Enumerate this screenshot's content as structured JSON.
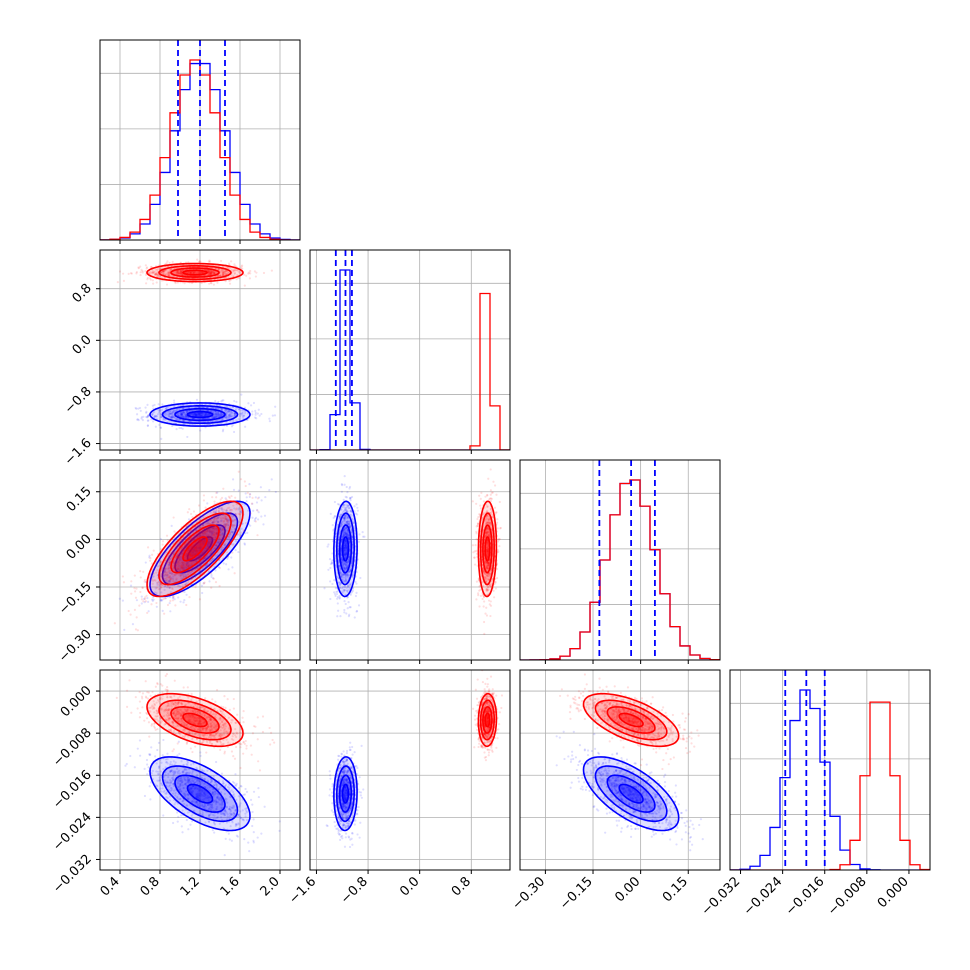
{
  "chart_data": {
    "type": "scatter",
    "grid": true,
    "colors": {
      "series_a": "#0000ff",
      "series_b": "#ff0000"
    },
    "params": [
      {
        "range": [
          0.2,
          2.2
        ],
        "ticks": [
          "0.4",
          "0.8",
          "1.2",
          "1.6",
          "2.0"
        ],
        "tick_values": [
          0.4,
          0.8,
          1.2,
          1.6,
          2.0
        ]
      },
      {
        "range": [
          -1.7,
          1.4
        ],
        "ticks": [
          "−1.6",
          "−0.8",
          "0.0",
          "0.8"
        ],
        "tick_values": [
          -1.6,
          -0.8,
          0.0,
          0.8
        ]
      },
      {
        "range": [
          -0.38,
          0.25
        ],
        "ticks": [
          "−0.30",
          "−0.15",
          "0.00",
          "0.15"
        ],
        "tick_values": [
          -0.3,
          -0.15,
          0.0,
          0.15
        ]
      },
      {
        "range": [
          -0.034,
          0.004
        ],
        "ticks": [
          "−0.032",
          "−0.024",
          "−0.016",
          "−0.008",
          "0.000"
        ],
        "tick_values": [
          -0.032,
          -0.024,
          -0.016,
          -0.008,
          0.0
        ]
      }
    ],
    "series": [
      {
        "color": "blue",
        "means": [
          1.2,
          -1.15,
          -0.03,
          -0.0195
        ],
        "stds": [
          0.25,
          0.09,
          0.075,
          0.0035
        ],
        "quantiles": [
          [
            0.98,
            1.2,
            1.45
          ],
          [
            -1.3,
            -1.15,
            -1.05
          ],
          [
            -0.13,
            -0.03,
            0.045
          ],
          [
            -0.0235,
            -0.0195,
            -0.016
          ]
        ]
      },
      {
        "color": "red",
        "means": [
          1.15,
          1.05,
          -0.03,
          -0.0055
        ],
        "stds": [
          0.24,
          0.07,
          0.075,
          0.0025
        ]
      }
    ],
    "correlations": {
      "blue": {
        "0-2": 0.75,
        "0-3": -0.6,
        "1-2": 0.05,
        "1-3": 0.05,
        "2-3": -0.65
      },
      "red": {
        "0-2": 0.75,
        "0-3": -0.5,
        "1-2": 0.05,
        "1-3": 0.05,
        "2-3": -0.6
      }
    }
  }
}
